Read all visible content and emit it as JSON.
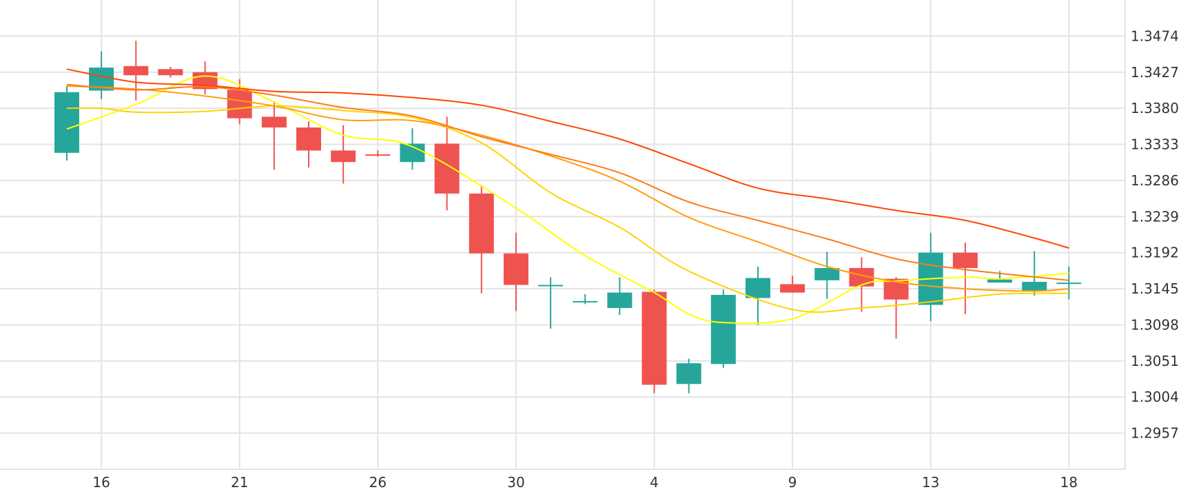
{
  "chart_data": {
    "type": "candlestick",
    "grid": true,
    "y_axis_position": "right",
    "ylim": [
      1.291,
      1.3521
    ],
    "y_ticks": [
      "1.2957",
      "1.3004",
      "1.3051",
      "1.3098",
      "1.3145",
      "1.3192",
      "1.3239",
      "1.3286",
      "1.3333",
      "1.3380",
      "1.3427",
      "1.3474"
    ],
    "x_ticks": [
      {
        "label": "16",
        "index": 1
      },
      {
        "label": "21",
        "index": 5
      },
      {
        "label": "26",
        "index": 9
      },
      {
        "label": "30",
        "index": 13
      },
      {
        "label": "4",
        "index": 17
      },
      {
        "label": "9",
        "index": 21
      },
      {
        "label": "13",
        "index": 25
      },
      {
        "label": "18",
        "index": 29
      }
    ],
    "colors": {
      "up": "#26a69a",
      "down": "#ef5350",
      "grid": "#e3e3e3",
      "axis_text": "#333333"
    },
    "candles": [
      {
        "o": 1.3322,
        "h": 1.3409,
        "l": 1.3312,
        "c": 1.3401
      },
      {
        "o": 1.3403,
        "h": 1.3454,
        "l": 1.3392,
        "c": 1.3433
      },
      {
        "o": 1.3435,
        "h": 1.3468,
        "l": 1.339,
        "c": 1.3423
      },
      {
        "o": 1.3431,
        "h": 1.3434,
        "l": 1.342,
        "c": 1.3423
      },
      {
        "o": 1.3427,
        "h": 1.3441,
        "l": 1.3398,
        "c": 1.3405
      },
      {
        "o": 1.3404,
        "h": 1.3418,
        "l": 1.3359,
        "c": 1.3367
      },
      {
        "o": 1.3369,
        "h": 1.3389,
        "l": 1.33,
        "c": 1.3355
      },
      {
        "o": 1.3355,
        "h": 1.3363,
        "l": 1.3303,
        "c": 1.3325
      },
      {
        "o": 1.3325,
        "h": 1.3358,
        "l": 1.3282,
        "c": 1.331
      },
      {
        "o": 1.332,
        "h": 1.3325,
        "l": 1.3317,
        "c": 1.3319
      },
      {
        "o": 1.331,
        "h": 1.3354,
        "l": 1.33,
        "c": 1.3334
      },
      {
        "o": 1.3334,
        "h": 1.3369,
        "l": 1.3247,
        "c": 1.3269
      },
      {
        "o": 1.3269,
        "h": 1.328,
        "l": 1.3139,
        "c": 1.3191
      },
      {
        "o": 1.3191,
        "h": 1.3218,
        "l": 1.3116,
        "c": 1.315
      },
      {
        "o": 1.315,
        "h": 1.316,
        "l": 1.3093,
        "c": 1.315
      },
      {
        "o": 1.3129,
        "h": 1.3138,
        "l": 1.3125,
        "c": 1.3129
      },
      {
        "o": 1.312,
        "h": 1.316,
        "l": 1.3111,
        "c": 1.314
      },
      {
        "o": 1.3141,
        "h": 1.3144,
        "l": 1.3009,
        "c": 1.302
      },
      {
        "o": 1.3021,
        "h": 1.3054,
        "l": 1.3009,
        "c": 1.3048
      },
      {
        "o": 1.3047,
        "h": 1.3144,
        "l": 1.3042,
        "c": 1.3137
      },
      {
        "o": 1.3133,
        "h": 1.3174,
        "l": 1.3098,
        "c": 1.3159
      },
      {
        "o": 1.3151,
        "h": 1.3162,
        "l": 1.3141,
        "c": 1.314
      },
      {
        "o": 1.3156,
        "h": 1.3193,
        "l": 1.3132,
        "c": 1.3172
      },
      {
        "o": 1.3172,
        "h": 1.3186,
        "l": 1.3115,
        "c": 1.3148
      },
      {
        "o": 1.3158,
        "h": 1.316,
        "l": 1.308,
        "c": 1.3131
      },
      {
        "o": 1.3124,
        "h": 1.3218,
        "l": 1.3103,
        "c": 1.3192
      },
      {
        "o": 1.3192,
        "h": 1.3205,
        "l": 1.3112,
        "c": 1.3172
      },
      {
        "o": 1.3153,
        "h": 1.3168,
        "l": 1.3153,
        "c": 1.3157
      },
      {
        "o": 1.3142,
        "h": 1.3194,
        "l": 1.3136,
        "c": 1.3154
      },
      {
        "o": 1.3153,
        "h": 1.3174,
        "l": 1.3131,
        "c": 1.3153
      }
    ],
    "moving_averages": [
      {
        "color": "#ffff00",
        "points": [
          [
            0,
            1.3353
          ],
          [
            2,
            1.3385
          ],
          [
            4,
            1.3422
          ],
          [
            6,
            1.3388
          ],
          [
            8,
            1.3345
          ],
          [
            10,
            1.333
          ],
          [
            13,
            1.325
          ],
          [
            15,
            1.3188
          ],
          [
            17,
            1.314
          ],
          [
            18,
            1.3112
          ],
          [
            19,
            1.3101
          ],
          [
            21,
            1.3106
          ],
          [
            23,
            1.315
          ],
          [
            24,
            1.3155
          ],
          [
            26,
            1.316
          ],
          [
            27,
            1.3158
          ],
          [
            29,
            1.3165
          ]
        ]
      },
      {
        "color": "#ffd400",
        "points": [
          [
            0,
            1.338
          ],
          [
            1,
            1.338
          ],
          [
            2,
            1.3375
          ],
          [
            4,
            1.3376
          ],
          [
            6,
            1.3383
          ],
          [
            8,
            1.3377
          ],
          [
            10,
            1.3368
          ],
          [
            12,
            1.3335
          ],
          [
            14,
            1.327
          ],
          [
            16,
            1.3225
          ],
          [
            18,
            1.3168
          ],
          [
            21,
            1.3118
          ],
          [
            23,
            1.312
          ],
          [
            25,
            1.3128
          ],
          [
            27,
            1.3138
          ],
          [
            29,
            1.3139
          ]
        ]
      },
      {
        "color": "#ff9f0a",
        "points": [
          [
            0,
            1.3409
          ],
          [
            2,
            1.3405
          ],
          [
            4,
            1.3396
          ],
          [
            6,
            1.3383
          ],
          [
            8,
            1.3365
          ],
          [
            10,
            1.3364
          ],
          [
            12,
            1.3345
          ],
          [
            14,
            1.3318
          ],
          [
            16,
            1.3285
          ],
          [
            18,
            1.3238
          ],
          [
            20,
            1.3206
          ],
          [
            22,
            1.3174
          ],
          [
            24,
            1.3154
          ],
          [
            26,
            1.3145
          ],
          [
            28,
            1.3142
          ],
          [
            29,
            1.3145
          ]
        ]
      },
      {
        "color": "#ff7a1a",
        "points": [
          [
            0,
            1.3411
          ],
          [
            2,
            1.3404
          ],
          [
            4,
            1.3408
          ],
          [
            6,
            1.3397
          ],
          [
            8,
            1.3381
          ],
          [
            10,
            1.337
          ],
          [
            12,
            1.3343
          ],
          [
            14,
            1.332
          ],
          [
            16,
            1.3296
          ],
          [
            18,
            1.3258
          ],
          [
            20,
            1.3234
          ],
          [
            22,
            1.321
          ],
          [
            24,
            1.3184
          ],
          [
            26,
            1.317
          ],
          [
            29,
            1.3156
          ]
        ]
      },
      {
        "color": "#ff4500",
        "points": [
          [
            0,
            1.3431
          ],
          [
            2,
            1.3414
          ],
          [
            4,
            1.341
          ],
          [
            6,
            1.3402
          ],
          [
            8,
            1.34
          ],
          [
            10,
            1.3394
          ],
          [
            12,
            1.3384
          ],
          [
            14,
            1.3363
          ],
          [
            16,
            1.334
          ],
          [
            18,
            1.3308
          ],
          [
            20,
            1.3276
          ],
          [
            22,
            1.3262
          ],
          [
            24,
            1.3247
          ],
          [
            26,
            1.3234
          ],
          [
            28,
            1.3211
          ],
          [
            29,
            1.3198
          ]
        ]
      }
    ]
  }
}
